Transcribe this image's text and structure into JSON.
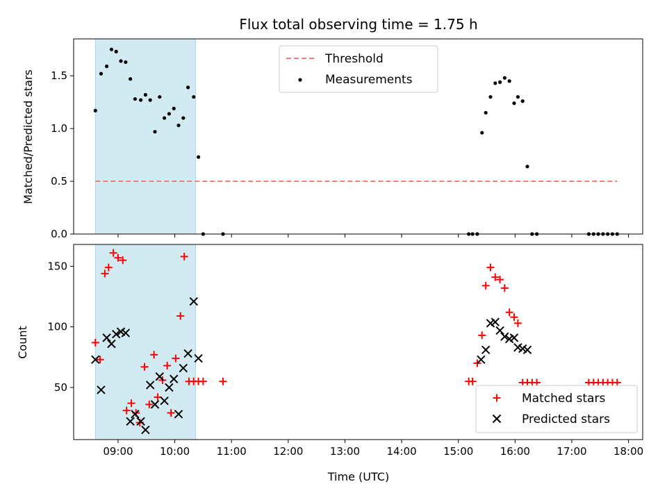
{
  "chart_data": [
    {
      "type": "scatter",
      "title": "Flux total observing time = 1.75 h",
      "xlabel": "",
      "ylabel": "Matched/Predicted stars",
      "xlim": [
        "08:13",
        "18:15"
      ],
      "ylim": [
        0,
        1.85
      ],
      "yticks": [
        "0.0",
        "0.5",
        "1.0",
        "1.5"
      ],
      "highlight_span": {
        "x": [
          "08:36",
          "10:22"
        ],
        "color": "#add8e6"
      },
      "threshold": {
        "name": "Threshold",
        "y": 0.5,
        "x": [
          "08:36",
          "17:48"
        ],
        "color": "#f08080",
        "style": "dashed"
      },
      "legend": {
        "placement": "upper-center"
      },
      "series": [
        {
          "name": "Measurements",
          "color": "#000000",
          "marker": "dot",
          "x": [
            "08:36",
            "08:42",
            "08:48",
            "08:53",
            "08:58",
            "09:03",
            "09:08",
            "09:13",
            "09:18",
            "09:24",
            "09:29",
            "09:34",
            "09:39",
            "09:44",
            "09:49",
            "09:54",
            "09:59",
            "10:04",
            "10:09",
            "10:14",
            "10:20",
            "10:25",
            "10:30",
            "10:51",
            "15:11",
            "15:15",
            "15:20",
            "15:25",
            "15:29",
            "15:34",
            "15:39",
            "15:44",
            "15:49",
            "15:54",
            "15:59",
            "16:03",
            "16:08",
            "16:13",
            "16:18",
            "16:23",
            "17:18",
            "17:23",
            "17:28",
            "17:33",
            "17:38",
            "17:43",
            "17:48"
          ],
          "y": [
            1.17,
            1.52,
            1.59,
            1.75,
            1.73,
            1.64,
            1.63,
            1.47,
            1.28,
            1.27,
            1.32,
            1.27,
            0.97,
            1.3,
            1.1,
            1.14,
            1.19,
            1.03,
            1.1,
            1.39,
            1.3,
            0.73,
            0.0,
            0.0,
            0.0,
            0.0,
            0.0,
            0.96,
            1.15,
            1.3,
            1.43,
            1.44,
            1.48,
            1.45,
            1.24,
            1.3,
            1.26,
            0.64,
            0.0,
            0.0,
            0.0,
            0.0,
            0.0,
            0.0,
            0.0,
            0.0,
            0.0
          ]
        }
      ]
    },
    {
      "type": "scatter",
      "title": "",
      "xlabel": "Time (UTC)",
      "ylabel": "Count",
      "xlim": [
        "08:13",
        "18:15"
      ],
      "ylim": [
        7,
        168
      ],
      "xticks": [
        "09:00",
        "10:00",
        "11:00",
        "12:00",
        "13:00",
        "14:00",
        "15:00",
        "16:00",
        "17:00",
        "18:00"
      ],
      "yticks": [
        "50",
        "100",
        "150"
      ],
      "highlight_span": {
        "x": [
          "08:36",
          "10:22"
        ],
        "color": "#add8e6"
      },
      "legend": {
        "placement": "lower-right"
      },
      "series": [
        {
          "name": "Matched stars",
          "color": "#ff0000",
          "marker": "plus",
          "x": [
            "08:36",
            "08:41",
            "08:46",
            "08:50",
            "08:55",
            "09:00",
            "09:05",
            "09:09",
            "09:14",
            "09:19",
            "09:23",
            "09:28",
            "09:33",
            "09:38",
            "09:42",
            "09:47",
            "09:52",
            "09:56",
            "10:01",
            "10:06",
            "10:10",
            "10:15",
            "10:20",
            "10:25",
            "10:30",
            "10:51",
            "15:11",
            "15:15",
            "15:20",
            "15:25",
            "15:29",
            "15:34",
            "15:39",
            "15:44",
            "15:49",
            "15:54",
            "15:59",
            "16:03",
            "16:08",
            "16:13",
            "16:18",
            "16:23",
            "17:18",
            "17:23",
            "17:28",
            "17:33",
            "17:38",
            "17:43",
            "17:48"
          ],
          "y": [
            87,
            73,
            144,
            149,
            161,
            157,
            155,
            31,
            37,
            29,
            21,
            67,
            36,
            77,
            42,
            56,
            68,
            29,
            74,
            109,
            158,
            55,
            55,
            55,
            55,
            55,
            55,
            55,
            70,
            93,
            134,
            149,
            141,
            139,
            132,
            112,
            108,
            103,
            54,
            54,
            54,
            54,
            54,
            54,
            54,
            54,
            54,
            54,
            54
          ]
        },
        {
          "name": "Predicted stars",
          "color": "#000000",
          "marker": "x",
          "x": [
            "08:36",
            "08:42",
            "08:48",
            "08:53",
            "08:58",
            "09:03",
            "09:08",
            "09:13",
            "09:18",
            "09:24",
            "09:29",
            "09:34",
            "09:39",
            "09:44",
            "09:49",
            "09:54",
            "09:59",
            "10:04",
            "10:09",
            "10:14",
            "10:20",
            "10:25",
            "15:24",
            "15:29",
            "15:34",
            "15:39",
            "15:44",
            "15:49",
            "15:54",
            "15:59",
            "16:03",
            "16:08",
            "16:13"
          ],
          "y": [
            73,
            48,
            91,
            86,
            94,
            96,
            95,
            22,
            28,
            22,
            15,
            52,
            36,
            59,
            39,
            50,
            57,
            28,
            66,
            78,
            121,
            74,
            73,
            81,
            103,
            104,
            97,
            92,
            90,
            91,
            83,
            82,
            81
          ]
        }
      ]
    }
  ]
}
